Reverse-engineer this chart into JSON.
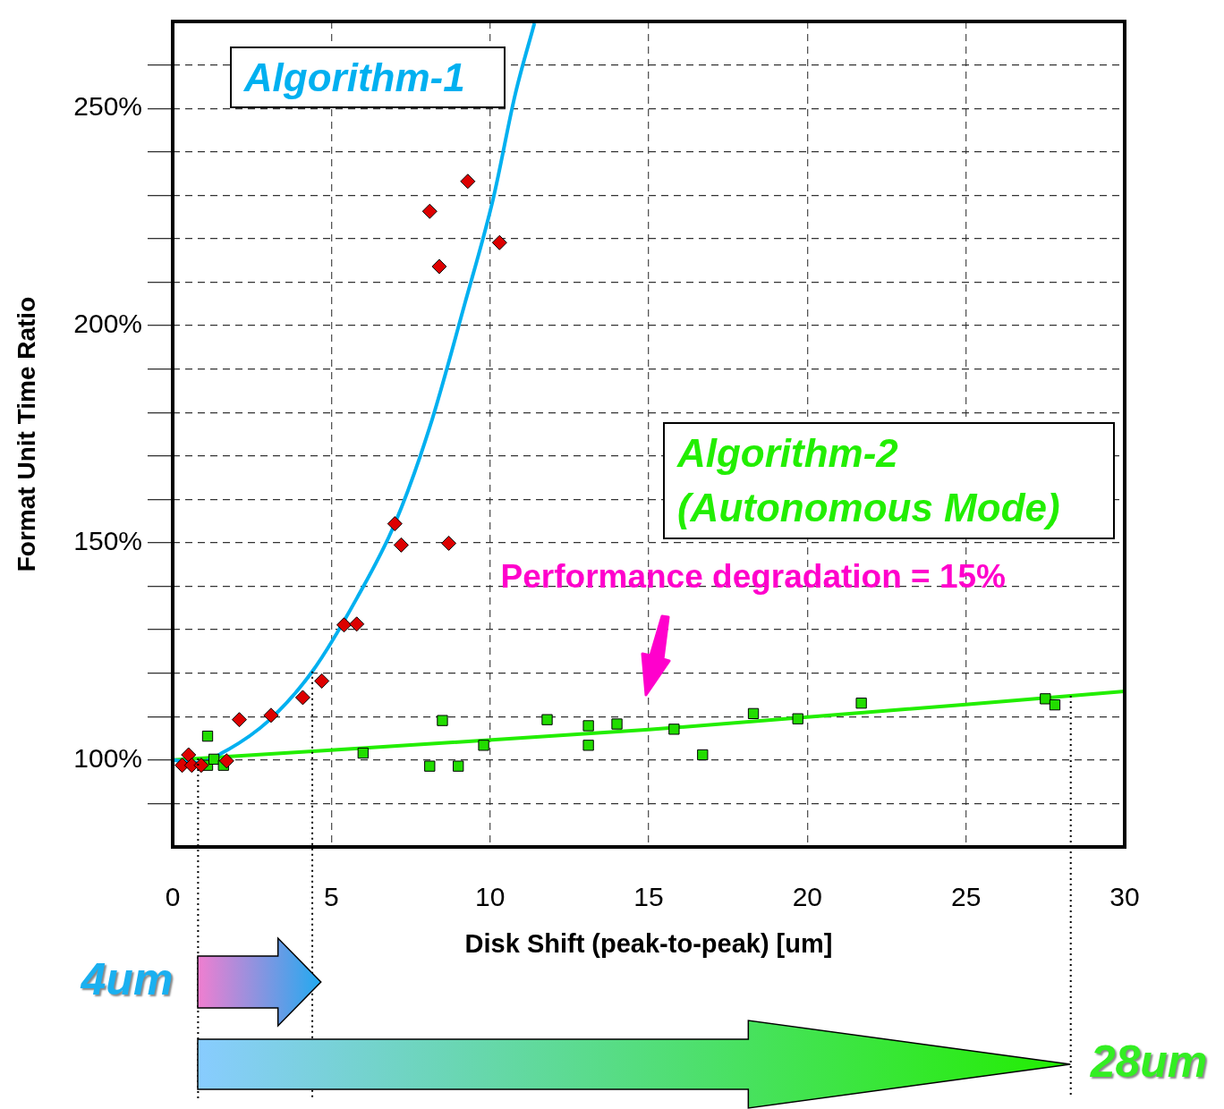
{
  "chart_data": {
    "type": "scatter",
    "xlabel": "Disk Shift (peak-to-peak) [um]",
    "ylabel": "Format Unit Time Ratio",
    "xlim": [
      0,
      30
    ],
    "xticks": [
      0,
      5,
      10,
      15,
      20,
      25,
      30
    ],
    "ylim": [
      80,
      270
    ],
    "yticks": [
      {
        "value": 90,
        "label": null
      },
      {
        "value": 100,
        "label": "100%"
      },
      {
        "value": 110,
        "label": null
      },
      {
        "value": 120,
        "label": null
      },
      {
        "value": 130,
        "label": null
      },
      {
        "value": 140,
        "label": null
      },
      {
        "value": 150,
        "label": "150%"
      },
      {
        "value": 160,
        "label": null
      },
      {
        "value": 170,
        "label": null
      },
      {
        "value": 180,
        "label": null
      },
      {
        "value": 190,
        "label": null
      },
      {
        "value": 200,
        "label": "200%"
      },
      {
        "value": 210,
        "label": null
      },
      {
        "value": 220,
        "label": null
      },
      {
        "value": 230,
        "label": null
      },
      {
        "value": 240,
        "label": null
      },
      {
        "value": 250,
        "label": "250%"
      },
      {
        "value": 260,
        "label": null
      }
    ],
    "grid": true,
    "legend": false,
    "series": [
      {
        "marker": "diamond",
        "color": "#dd0000",
        "x": [
          0.3,
          0.5,
          0.6,
          0.9,
          1.7,
          2.1,
          3.1,
          4.1,
          4.7,
          5.4,
          5.8,
          7.0,
          7.2,
          8.7,
          8.1,
          8.4,
          9.3,
          10.3
        ],
        "values": [
          98.8,
          101.2,
          98.8,
          98.8,
          99.8,
          109.3,
          110.3,
          114.4,
          118.2,
          131.1,
          131.3,
          154.4,
          149.5,
          149.9,
          226.3,
          213.6,
          233.2,
          219.1
        ]
      },
      {
        "marker": "square",
        "color": "#22dd00",
        "x": [
          1.1,
          1.1,
          1.3,
          1.6,
          6.0,
          8.1,
          8.5,
          9.0,
          9.8,
          11.8,
          13.1,
          13.1,
          14.0,
          15.8,
          16.7,
          18.3,
          19.7,
          21.7,
          27.5,
          27.8
        ],
        "values": [
          105.5,
          98.8,
          100.2,
          98.8,
          101.6,
          98.6,
          109.1,
          98.6,
          103.4,
          109.3,
          107.9,
          103.4,
          108.3,
          107.1,
          101.2,
          110.7,
          109.5,
          113.1,
          114.1,
          112.7
        ]
      },
      {
        "type": "line",
        "marker": "none",
        "name": "Algorithm-1",
        "color": "#00b0f0",
        "x": [
          0,
          0.8,
          1.6,
          3.0,
          4.4,
          5.8,
          7.0,
          8.1,
          9.2,
          10.1,
          10.8,
          11.4
        ],
        "values": [
          100,
          99.4,
          101.8,
          108.9,
          120.4,
          137.2,
          154.4,
          176.6,
          204.9,
          229.2,
          253.4,
          269.6
        ]
      },
      {
        "type": "line",
        "marker": "none",
        "name": "Algorithm-2 (Autonomous Mode)",
        "color": "#22ee00",
        "x": [
          0,
          15,
          30
        ],
        "values": [
          100,
          107,
          115.8
        ]
      }
    ],
    "ref_lines": [
      {
        "axis": "x",
        "value": 0.8,
        "line_style": "dotted",
        "color": "#000000"
      },
      {
        "axis": "x",
        "value": 4.4,
        "line_style": "dotted",
        "color": "#000000"
      },
      {
        "axis": "x",
        "value": 28.3,
        "line_style": "dotted",
        "color": "#000000"
      }
    ],
    "annotations": [
      "Performance degradation = 15%",
      "4um",
      "28um"
    ]
  }
}
